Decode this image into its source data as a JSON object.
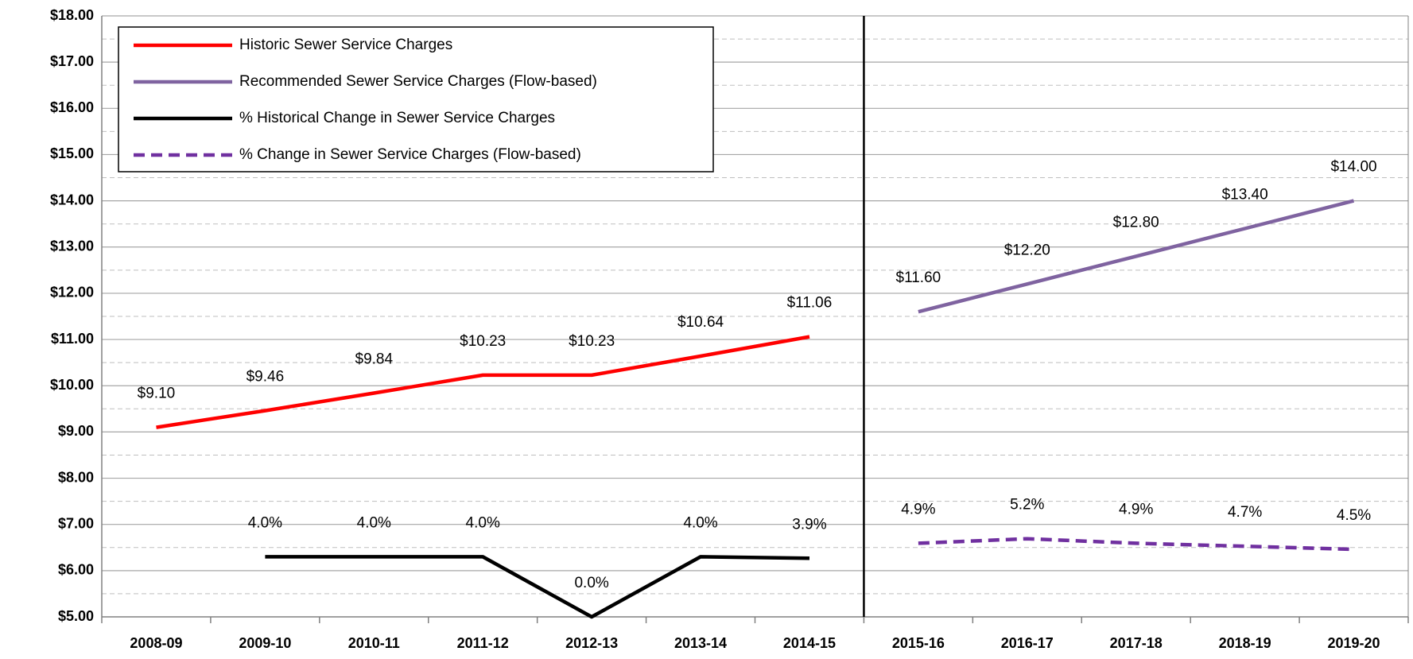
{
  "chart_data": {
    "type": "line",
    "categories": [
      "2008-09",
      "2009-10",
      "2010-11",
      "2011-12",
      "2012-13",
      "2013-14",
      "2014-15",
      "2015-16",
      "2016-17",
      "2017-18",
      "2018-19",
      "2019-20"
    ],
    "series": [
      {
        "name": "Historic Sewer Service Charges",
        "color": "#ff0000",
        "dashed": false,
        "values": [
          9.1,
          9.46,
          9.84,
          10.23,
          10.23,
          10.64,
          11.06,
          null,
          null,
          null,
          null,
          null
        ],
        "value_labels": [
          "$9.10",
          "$9.46",
          "$9.84",
          "$10.23",
          "$10.23",
          "$10.64",
          "$11.06",
          null,
          null,
          null,
          null,
          null
        ]
      },
      {
        "name": "Recommended Sewer Service Charges (Flow-based)",
        "color": "#7f63a0",
        "dashed": false,
        "values": [
          null,
          null,
          null,
          null,
          null,
          null,
          null,
          11.6,
          12.2,
          12.8,
          13.4,
          14.0
        ],
        "value_labels": [
          null,
          null,
          null,
          null,
          null,
          null,
          null,
          "$11.60",
          "$12.20",
          "$12.80",
          "$13.40",
          "$14.00"
        ]
      },
      {
        "name": "% Historical Change in Sewer Service Charges",
        "color": "#000000",
        "dashed": false,
        "axis": "y2",
        "values": [
          null,
          4.0,
          4.0,
          4.0,
          0.0,
          4.0,
          3.9,
          null,
          null,
          null,
          null,
          null
        ],
        "value_labels": [
          null,
          "4.0%",
          "4.0%",
          "4.0%",
          "0.0%",
          "4.0%",
          "3.9%",
          null,
          null,
          null,
          null,
          null
        ]
      },
      {
        "name": "% Change in Sewer Service Charges (Flow-based)",
        "color": "#7030a0",
        "dashed": true,
        "axis": "y2",
        "values": [
          null,
          null,
          null,
          null,
          null,
          null,
          null,
          4.9,
          5.2,
          4.9,
          4.7,
          4.5
        ],
        "value_labels": [
          null,
          null,
          null,
          null,
          null,
          null,
          null,
          "4.9%",
          "5.2%",
          "4.9%",
          "4.7%",
          "4.5%"
        ]
      }
    ],
    "ylim": [
      5,
      18
    ],
    "yticks": [
      {
        "value": 5,
        "label": "$5.00"
      },
      {
        "value": 6,
        "label": "$6.00"
      },
      {
        "value": 7,
        "label": "$7.00"
      },
      {
        "value": 8,
        "label": "$8.00"
      },
      {
        "value": 9,
        "label": "$9.00"
      },
      {
        "value": 10,
        "label": "$10.00"
      },
      {
        "value": 11,
        "label": "$11.00"
      },
      {
        "value": 12,
        "label": "$12.00"
      },
      {
        "value": 13,
        "label": "$13.00"
      },
      {
        "value": 14,
        "label": "$14.00"
      },
      {
        "value": 15,
        "label": "$15.00"
      },
      {
        "value": 16,
        "label": "$16.00"
      },
      {
        "value": 17,
        "label": "$17.00"
      },
      {
        "value": 18,
        "label": "$18.00"
      }
    ],
    "y2lim": [
      0,
      40
    ],
    "grid": true,
    "legend": "upper left"
  }
}
